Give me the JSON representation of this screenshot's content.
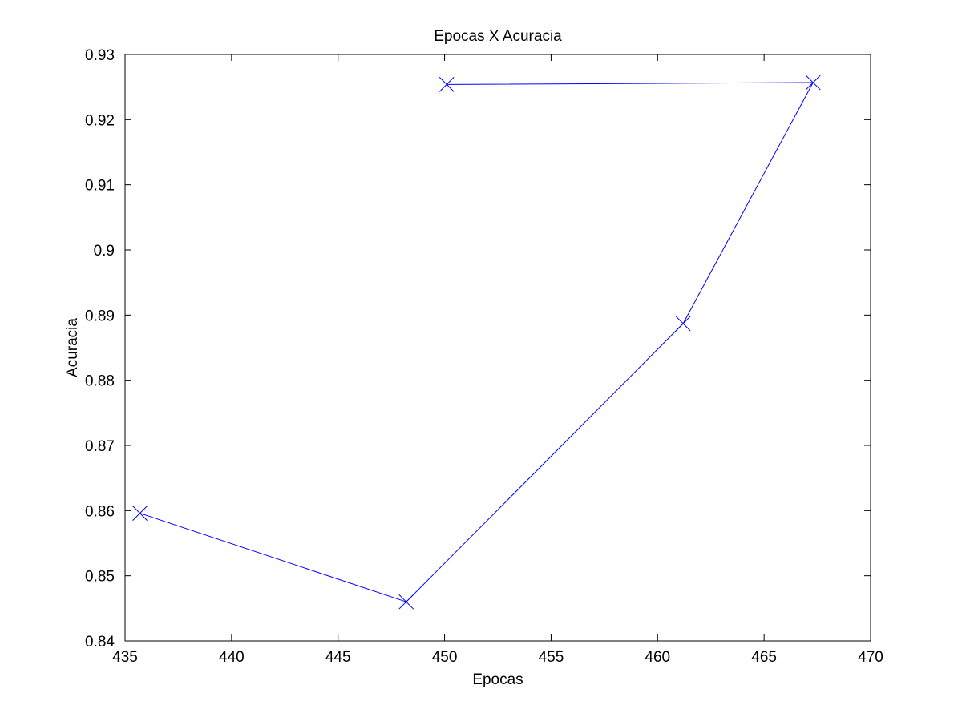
{
  "chart_data": {
    "type": "line",
    "title": "Epocas X Acuracia",
    "xlabel": "Epocas",
    "ylabel": "Acuracia",
    "xlim": [
      435,
      470
    ],
    "ylim": [
      0.84,
      0.93
    ],
    "xticks": [
      "435",
      "440",
      "445",
      "450",
      "455",
      "460",
      "465",
      "470"
    ],
    "yticks": [
      "0.84",
      "0.85",
      "0.86",
      "0.87",
      "0.88",
      "0.89",
      "0.9",
      "0.91",
      "0.92",
      "0.93"
    ],
    "grid": false,
    "line_color": "#0000ff",
    "marker": "x",
    "series": [
      {
        "x": [
          435.7,
          448.2,
          461.2,
          467.3,
          450.1
        ],
        "y": [
          0.8596,
          0.846,
          0.8887,
          0.9257,
          0.9254
        ]
      }
    ]
  }
}
